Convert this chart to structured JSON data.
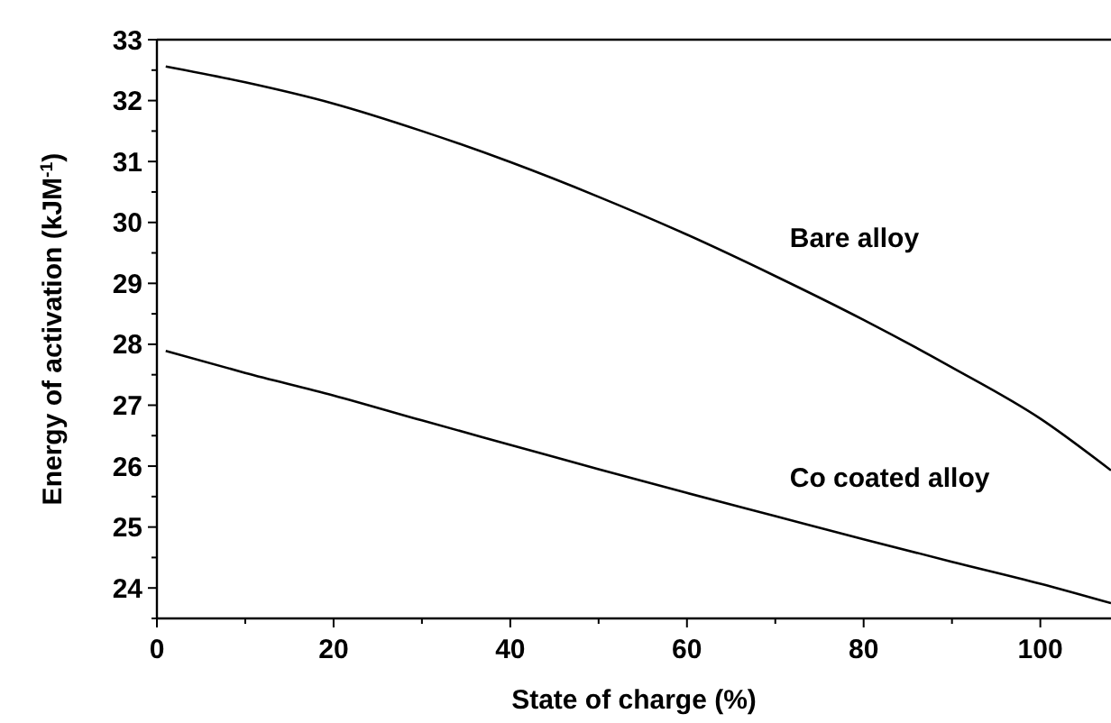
{
  "chart_data": {
    "type": "line",
    "xlabel": "State of charge (%)",
    "ylabel": "Energy of activation (kJM$^{-1}$)",
    "xlim": [
      0,
      108
    ],
    "ylim": [
      23.5,
      33
    ],
    "xticks": [
      0,
      {
        "value": 10,
        "label": null
      },
      20,
      {
        "value": 30,
        "label": null
      },
      40,
      {
        "value": 50,
        "label": null
      },
      60,
      {
        "value": 70,
        "label": null
      },
      80,
      {
        "value": 90,
        "label": null
      },
      100
    ],
    "yticks": [
      {
        "value": 23.5,
        "label": null
      },
      24,
      {
        "value": 24.5,
        "label": null
      },
      25,
      {
        "value": 25.5,
        "label": null
      },
      26,
      {
        "value": 26.5,
        "label": null
      },
      27,
      {
        "value": 27.5,
        "label": null
      },
      28,
      {
        "value": 28.5,
        "label": null
      },
      29,
      {
        "value": 29.5,
        "label": null
      },
      30,
      {
        "value": 30.5,
        "label": null
      },
      31,
      {
        "value": 31.5,
        "label": null
      },
      32,
      {
        "value": 32.5,
        "label": null
      },
      33
    ],
    "grid": false,
    "legend": false,
    "marker": "none",
    "line_style": "solid",
    "series": [
      {
        "name": "Bare alloy",
        "color": "#000000",
        "x": [
          1,
          10,
          20,
          30,
          40,
          50,
          60,
          70,
          80,
          90,
          100,
          108
        ],
        "values": [
          32.56,
          32.3,
          31.95,
          31.5,
          30.99,
          30.42,
          29.8,
          29.12,
          28.4,
          27.62,
          26.78,
          25.93
        ]
      },
      {
        "name": "Co coated alloy",
        "color": "#000000",
        "x": [
          1,
          10,
          20,
          30,
          40,
          50,
          60,
          70,
          80,
          90,
          100,
          108
        ],
        "values": [
          27.89,
          27.53,
          27.16,
          26.75,
          26.35,
          25.95,
          25.56,
          25.18,
          24.8,
          24.43,
          24.07,
          23.75
        ]
      }
    ]
  }
}
